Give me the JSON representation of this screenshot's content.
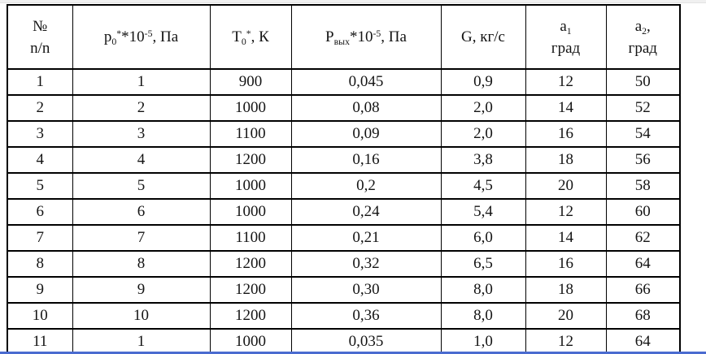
{
  "window": {
    "top_strip_color": "#f0f0f0",
    "bottom_line_color": "#4a6bd0",
    "background_color": "#ffffff",
    "text_color": "#141414",
    "border_color": "#000000"
  },
  "table": {
    "columns": [
      {
        "key": "row_number",
        "header_parts": [
          [
            "n",
            "№"
          ],
          [
            "br",
            ""
          ],
          [
            "n",
            "n/n"
          ]
        ]
      },
      {
        "key": "p0",
        "header_parts": [
          [
            "n",
            "p"
          ],
          [
            "sub",
            "0"
          ],
          [
            "sup",
            "*"
          ],
          [
            "n",
            "*10"
          ],
          [
            "sup",
            "-5"
          ],
          [
            "n",
            ", Па"
          ]
        ]
      },
      {
        "key": "t0",
        "header_parts": [
          [
            "n",
            "T"
          ],
          [
            "sub",
            "0"
          ],
          [
            "sup",
            "*"
          ],
          [
            "n",
            ", К"
          ]
        ]
      },
      {
        "key": "p_out",
        "header_parts": [
          [
            "n",
            "P"
          ],
          [
            "sub",
            "вых"
          ],
          [
            "n",
            "*10"
          ],
          [
            "sup",
            "-5"
          ],
          [
            "n",
            ", Па"
          ]
        ]
      },
      {
        "key": "g",
        "header_parts": [
          [
            "n",
            "G, кг/с"
          ]
        ]
      },
      {
        "key": "a1",
        "header_parts": [
          [
            "n",
            "a"
          ],
          [
            "sub",
            "1"
          ],
          [
            "br",
            ""
          ],
          [
            "n",
            "град"
          ]
        ]
      },
      {
        "key": "a2",
        "header_parts": [
          [
            "n",
            "a"
          ],
          [
            "sub",
            "2"
          ],
          [
            "n",
            ","
          ],
          [
            "br",
            ""
          ],
          [
            "n",
            "град"
          ]
        ]
      }
    ],
    "rows": [
      [
        "1",
        "1",
        "900",
        "0,045",
        "0,9",
        "12",
        "50"
      ],
      [
        "2",
        "2",
        "1000",
        "0,08",
        "2,0",
        "14",
        "52"
      ],
      [
        "3",
        "3",
        "1100",
        "0,09",
        "2,0",
        "16",
        "54"
      ],
      [
        "4",
        "4",
        "1200",
        "0,16",
        "3,8",
        "18",
        "56"
      ],
      [
        "5",
        "5",
        "1000",
        "0,2",
        "4,5",
        "20",
        "58"
      ],
      [
        "6",
        "6",
        "1000",
        "0,24",
        "5,4",
        "12",
        "60"
      ],
      [
        "7",
        "7",
        "1100",
        "0,21",
        "6,0",
        "14",
        "62"
      ],
      [
        "8",
        "8",
        "1200",
        "0,32",
        "6,5",
        "16",
        "64"
      ],
      [
        "9",
        "9",
        "1200",
        "0,30",
        "8,0",
        "18",
        "66"
      ],
      [
        "10",
        "10",
        "1200",
        "0,36",
        "8,0",
        "20",
        "68"
      ],
      [
        "11",
        "1",
        "1000",
        "0,035",
        "1,0",
        "12",
        "64"
      ]
    ]
  }
}
